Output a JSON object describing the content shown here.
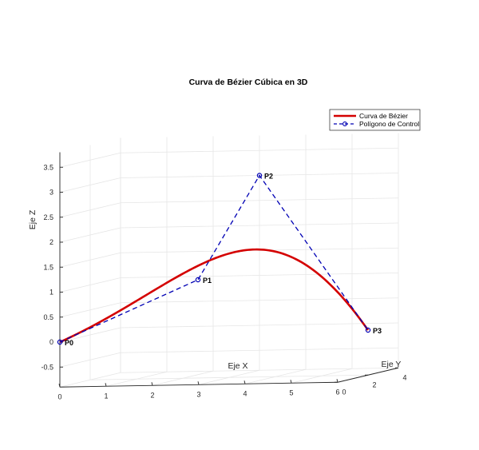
{
  "chart_data": {
    "type": "line",
    "projection": "3d",
    "title": "Curva de Bézier Cúbica en 3D",
    "xlabel": "Eje X",
    "ylabel": "Eje Y",
    "zlabel": "Eje Z",
    "xlim": [
      0,
      6
    ],
    "ylim": [
      0,
      4
    ],
    "zlim": [
      -0.9,
      3.8
    ],
    "xticks": [
      "0",
      "1",
      "2",
      "3",
      "4",
      "5",
      "6"
    ],
    "yticks": [
      "0",
      "2",
      "4"
    ],
    "zticks": [
      "-0.5",
      "0",
      "0.5",
      "1",
      "1.5",
      "2",
      "2.5",
      "3",
      "3.5"
    ],
    "grid": true,
    "legend_position": "top-right",
    "control_points": [
      {
        "label": "P0",
        "x": 0,
        "y": 0,
        "z": 0
      },
      {
        "label": "P1",
        "x": 2,
        "y": 3,
        "z": 1
      },
      {
        "label": "P2",
        "x": 3,
        "y": 4,
        "z": 3
      },
      {
        "label": "P3",
        "x": 6,
        "y": 2,
        "z": 0
      }
    ],
    "series": [
      {
        "name": "Curva de Bézier",
        "style": "solid",
        "color": "#d40000"
      },
      {
        "name": "Polígono de Control",
        "style": "dashed-circles",
        "color": "#0000b4"
      }
    ]
  }
}
